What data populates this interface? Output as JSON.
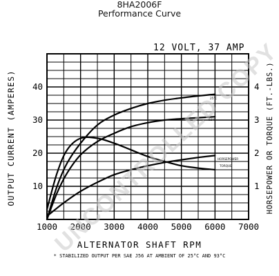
{
  "header": {
    "model": "8HA2006F",
    "subtitle": "Performance Curve"
  },
  "watermark": "UNCONTROLLED COPY",
  "chart_data": {
    "type": "line",
    "rating": "12 VOLT, 37 AMP",
    "xlabel": "ALTERNATOR SHAFT RPM",
    "ylabel_left": "OUTPUT CURRENT (AMPERES)",
    "ylabel_right": "HORSEPOWER OR TORQUE (FT.-LBS.)",
    "footnote": "* STABILIZED OUTPUT PER SAE J56 AT AMBIENT OF 25°C AND 93°C",
    "xlim": [
      1000,
      7000
    ],
    "ylim_left": [
      0,
      50
    ],
    "ylim_right": [
      0,
      5
    ],
    "x_ticks": [
      1000,
      2000,
      3000,
      4000,
      5000,
      6000,
      7000
    ],
    "x_tick_labels": [
      "1000",
      "2000",
      "3000",
      "4000",
      "5000",
      "6000",
      "7000"
    ],
    "y_left_ticks": [
      10,
      20,
      30,
      40
    ],
    "y_left_tick_labels": [
      "10",
      "20",
      "30",
      "40"
    ],
    "y_right_ticks": [
      1,
      2,
      3,
      4
    ],
    "y_right_tick_labels": [
      "1",
      "2",
      "3",
      "4"
    ],
    "grid": true,
    "series": [
      {
        "name": "25°C",
        "axis": "left",
        "x": [
          1000,
          1300,
          1600,
          2000,
          2500,
          3000,
          3500,
          4000,
          4500,
          5000,
          5500,
          6000
        ],
        "values": [
          0,
          10,
          17,
          23,
          28.5,
          31.5,
          33.5,
          35,
          36,
          36.7,
          37.3,
          37.8
        ]
      },
      {
        "name": "93°C",
        "axis": "left",
        "x": [
          1000,
          1300,
          1600,
          2000,
          2500,
          3000,
          3500,
          4000,
          4500,
          5000,
          5500,
          6000
        ],
        "values": [
          0,
          8,
          14,
          19.5,
          23.5,
          26,
          28,
          29.2,
          30,
          30.4,
          30.7,
          31
        ]
      },
      {
        "name": "HORSEPOWER",
        "axis": "right",
        "x": [
          1000,
          1500,
          2000,
          2500,
          3000,
          3500,
          4000,
          4500,
          5000,
          5500,
          6000
        ],
        "values": [
          0.1,
          0.5,
          0.85,
          1.12,
          1.35,
          1.5,
          1.62,
          1.72,
          1.8,
          1.87,
          1.93
        ]
      },
      {
        "name": "TORQUE",
        "axis": "right",
        "x": [
          1000,
          1300,
          1600,
          2000,
          2500,
          3000,
          3500,
          4000,
          4500,
          5000,
          5500,
          6000
        ],
        "values": [
          0.3,
          1.4,
          2.1,
          2.45,
          2.45,
          2.3,
          2.1,
          1.9,
          1.75,
          1.62,
          1.55,
          1.5
        ]
      }
    ]
  }
}
